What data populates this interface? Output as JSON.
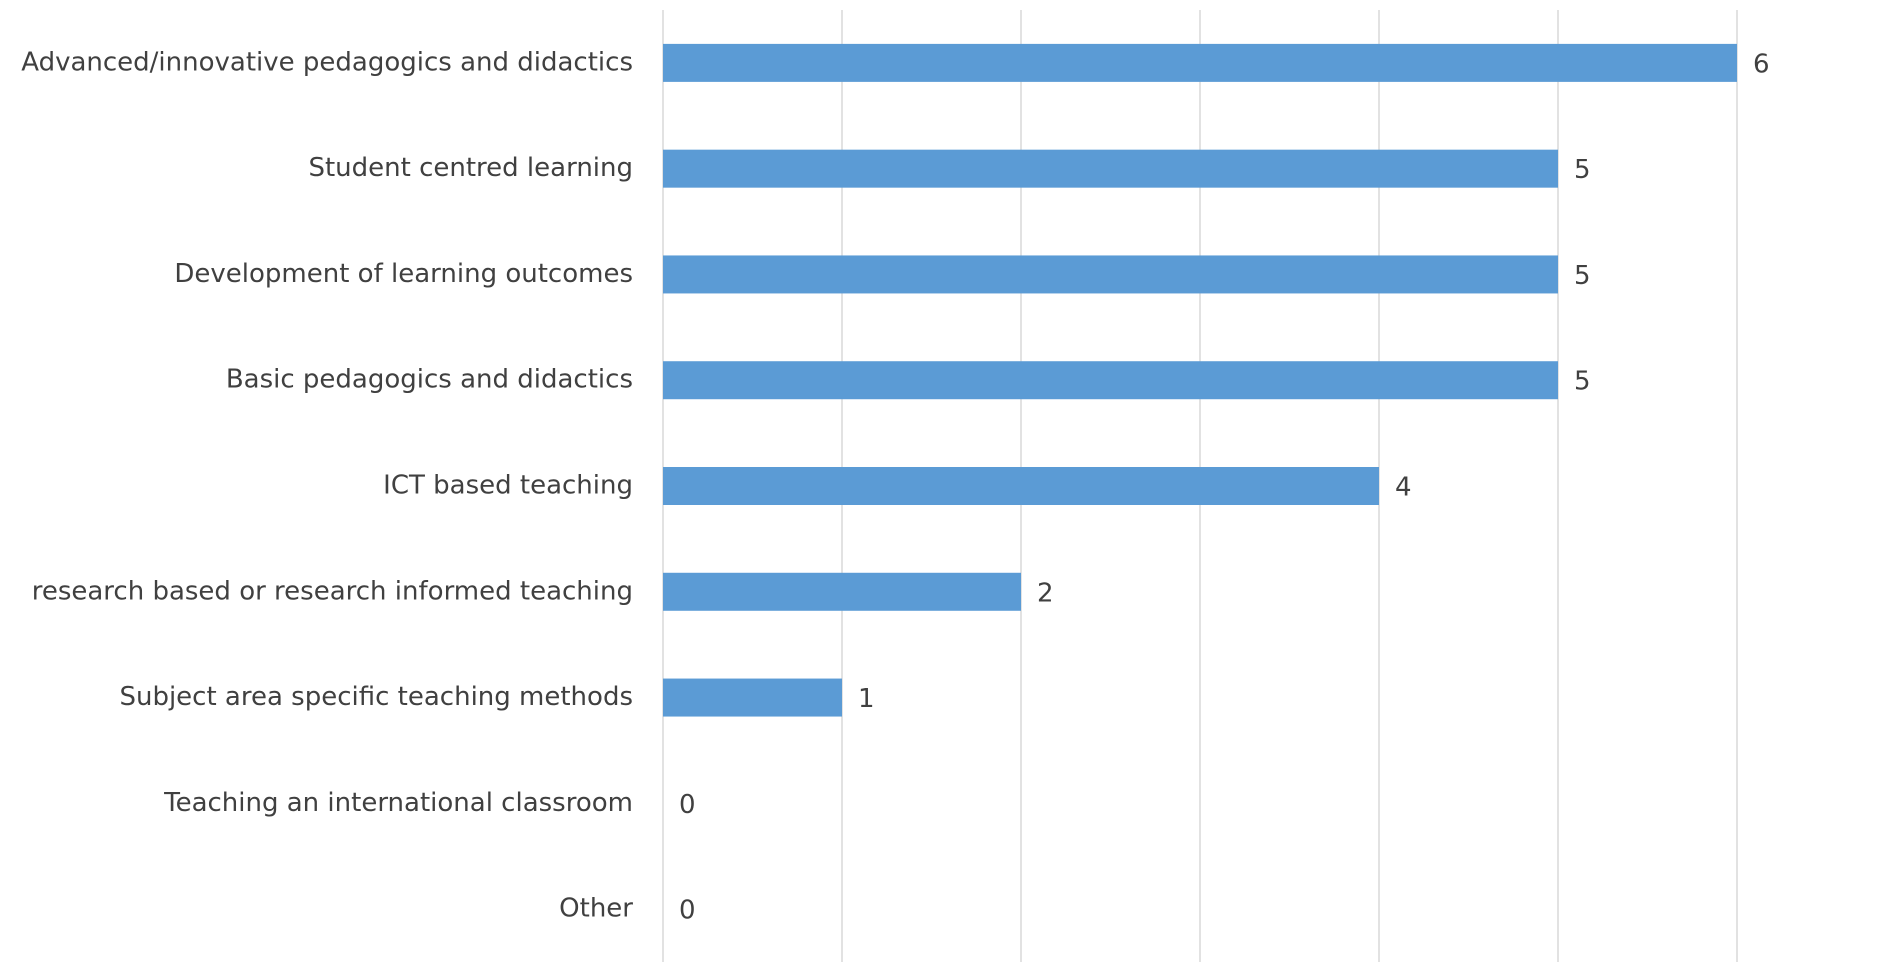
{
  "chart_data": {
    "type": "bar",
    "orientation": "horizontal",
    "categories": [
      "Advanced/innovative pedagogics and didactics",
      "Student centred learning",
      "Development of learning outcomes",
      "Basic pedagogics and didactics",
      "ICT based teaching",
      "research based or research informed teaching",
      "Subject area specific teaching methods",
      "Teaching an international classroom",
      "Other"
    ],
    "values": [
      6,
      5,
      5,
      5,
      4,
      2,
      1,
      0,
      0
    ],
    "color": "#5b9bd5",
    "xlim": [
      0,
      6
    ],
    "xticks": [
      0,
      1,
      2,
      3,
      4,
      5,
      6
    ],
    "grid": true
  }
}
